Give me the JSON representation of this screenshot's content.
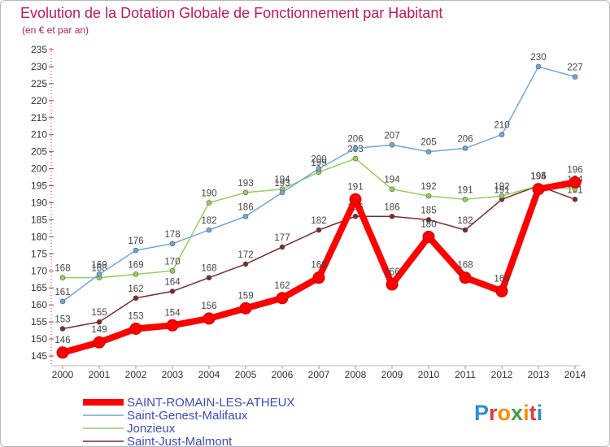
{
  "chart_data": {
    "type": "line",
    "title": "Evolution de la Dotation Globale de Fonctionnement par Habitant",
    "subtitle": "(en € et par an)",
    "xlabel": "",
    "ylabel": "",
    "x": [
      "2000",
      "2001",
      "2002",
      "2003",
      "2004",
      "2005",
      "2006",
      "2007",
      "2008",
      "2009",
      "2010",
      "2011",
      "2012",
      "2013",
      "2014"
    ],
    "ylim": [
      145,
      235
    ],
    "yticks": [
      145,
      150,
      155,
      160,
      165,
      170,
      175,
      180,
      185,
      190,
      195,
      200,
      205,
      210,
      215,
      220,
      225,
      230,
      235
    ],
    "grid": false,
    "legend_position": "bottom-left",
    "series": [
      {
        "name": "SAINT-ROMAIN-LES-ATHEUX",
        "color": "#ff0000",
        "values": [
          146,
          149,
          153,
          154,
          156,
          159,
          162,
          168,
          191,
          166,
          180,
          168,
          164,
          194,
          196
        ]
      },
      {
        "name": "Saint-Genest-Malifaux",
        "color": "#6fa8dc",
        "values": [
          161,
          169,
          176,
          178,
          182,
          186,
          193,
          200,
          206,
          207,
          205,
          206,
          210,
          230,
          227
        ]
      },
      {
        "name": "Jonzieux",
        "color": "#93d05a",
        "values": [
          168,
          168,
          169,
          170,
          190,
          193,
          194,
          199,
          203,
          194,
          192,
          191,
          192,
          195,
          194
        ]
      },
      {
        "name": "Saint-Just-Malmont",
        "color": "#7b2b2b",
        "values": [
          153,
          155,
          162,
          164,
          168,
          172,
          177,
          182,
          186,
          186,
          185,
          182,
          191,
          195,
          191
        ]
      }
    ]
  },
  "logo": {
    "letters": [
      "P",
      "r",
      "o",
      "x",
      "i",
      "t",
      "i"
    ],
    "colors": [
      "#2b8fd6",
      "#e53935",
      "#fb8c00",
      "#43a047",
      "#fb8c00",
      "#e53935",
      "#2b8fd6"
    ]
  }
}
